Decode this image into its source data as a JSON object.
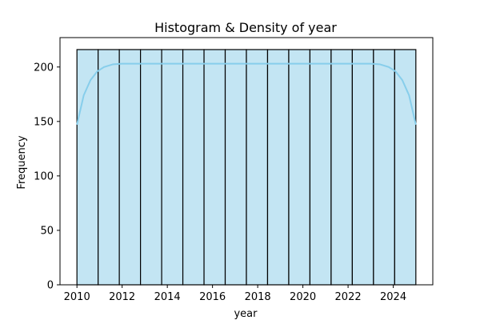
{
  "chart_data": {
    "type": "bar",
    "title": "Histogram & Density of year",
    "xlabel": "year",
    "ylabel": "Frequency",
    "xlim": [
      2009.25,
      2025.75
    ],
    "ylim": [
      0,
      227
    ],
    "x_ticks": [
      2010,
      2012,
      2014,
      2016,
      2018,
      2020,
      2022,
      2024
    ],
    "y_ticks": [
      0,
      50,
      100,
      150,
      200
    ],
    "grid": false,
    "legend": "none",
    "bins": [
      {
        "start": 2010.0,
        "end": 2010.9375,
        "count": 216
      },
      {
        "start": 2010.9375,
        "end": 2011.875,
        "count": 216
      },
      {
        "start": 2011.875,
        "end": 2012.8125,
        "count": 216
      },
      {
        "start": 2012.8125,
        "end": 2013.75,
        "count": 216
      },
      {
        "start": 2013.75,
        "end": 2014.6875,
        "count": 216
      },
      {
        "start": 2014.6875,
        "end": 2015.625,
        "count": 216
      },
      {
        "start": 2015.625,
        "end": 2016.5625,
        "count": 216
      },
      {
        "start": 2016.5625,
        "end": 2017.5,
        "count": 216
      },
      {
        "start": 2017.5,
        "end": 2018.4375,
        "count": 216
      },
      {
        "start": 2018.4375,
        "end": 2019.375,
        "count": 216
      },
      {
        "start": 2019.375,
        "end": 2020.3125,
        "count": 216
      },
      {
        "start": 2020.3125,
        "end": 2021.25,
        "count": 216
      },
      {
        "start": 2021.25,
        "end": 2022.1875,
        "count": 216
      },
      {
        "start": 2022.1875,
        "end": 2023.125,
        "count": 216
      },
      {
        "start": 2023.125,
        "end": 2024.0625,
        "count": 216
      },
      {
        "start": 2024.0625,
        "end": 2025.0,
        "count": 216
      }
    ],
    "density_curve": {
      "x": [
        2010.0,
        2010.3,
        2010.6,
        2010.9,
        2011.2,
        2011.6,
        2012.0,
        2013.0,
        2015.0,
        2017.5,
        2020.0,
        2022.0,
        2023.0,
        2023.4,
        2023.8,
        2024.1,
        2024.4,
        2024.7,
        2025.0
      ],
      "y": [
        147,
        174,
        188,
        196,
        200,
        202.5,
        203,
        203,
        203,
        203,
        203,
        203,
        203,
        202.5,
        200,
        196,
        188,
        174,
        147
      ]
    },
    "colors": {
      "bar_fill": "#c3e5f3",
      "bar_edge": "#000000",
      "density_line": "#87ceeb"
    }
  }
}
